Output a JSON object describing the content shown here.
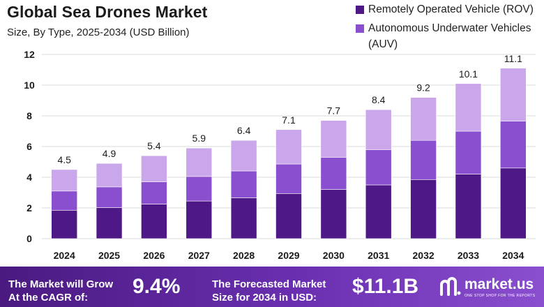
{
  "header": {
    "title": "Global Sea Drones Market",
    "subtitle": "Size, By Type, 2025-2034 (USD Billion)"
  },
  "colors": {
    "rov": "#4e1886",
    "auv": "#8a4fcf",
    "top": "#caa6ea",
    "grid": "#d9d9d9"
  },
  "chart_data": {
    "type": "bar",
    "stacked": true,
    "categories": [
      "2024",
      "2025",
      "2026",
      "2027",
      "2028",
      "2029",
      "2030",
      "2031",
      "2032",
      "2033",
      "2034"
    ],
    "series": [
      {
        "name": "Remotely Operated Vehicle (ROV)",
        "color": "#4e1886",
        "values": [
          1.85,
          2.02,
          2.25,
          2.45,
          2.66,
          2.94,
          3.2,
          3.5,
          3.85,
          4.2,
          4.6
        ]
      },
      {
        "name": "Autonomous Underwater Vehicles (AUV)",
        "color": "#8a4fcf",
        "values": [
          1.25,
          1.35,
          1.45,
          1.6,
          1.75,
          1.92,
          2.1,
          2.3,
          2.55,
          2.8,
          3.05
        ]
      },
      {
        "name": "",
        "color": "#caa6ea",
        "values": [
          1.4,
          1.53,
          1.7,
          1.85,
          1.99,
          2.24,
          2.4,
          2.6,
          2.8,
          3.1,
          3.45
        ]
      }
    ],
    "totals": [
      4.5,
      4.9,
      5.4,
      5.9,
      6.4,
      7.1,
      7.7,
      8.4,
      9.2,
      10.1,
      11.1
    ],
    "total_labels": [
      "4.5",
      "4.9",
      "5.4",
      "5.9",
      "6.4",
      "7.1",
      "7.7",
      "8.4",
      "9.2",
      "10.1",
      "11.1"
    ],
    "ylim": [
      0,
      12
    ],
    "yticks": [
      0,
      2,
      4,
      6,
      8,
      10,
      12
    ],
    "grid": true,
    "legend_position": "top-right"
  },
  "footer": {
    "cagr_label_line1": "The Market will Grow",
    "cagr_label_line2": "At the CAGR of:",
    "cagr_value": "9.4%",
    "forecast_label_line1": "The Forecasted Market",
    "forecast_label_line2": "Size for 2034 in USD:",
    "forecast_value": "$11.1B",
    "brand_name": "market.us",
    "brand_tagline": "ONE STOP SHOP FOR THE REPORTS",
    "brand_icon": "market-us-logo-icon"
  }
}
